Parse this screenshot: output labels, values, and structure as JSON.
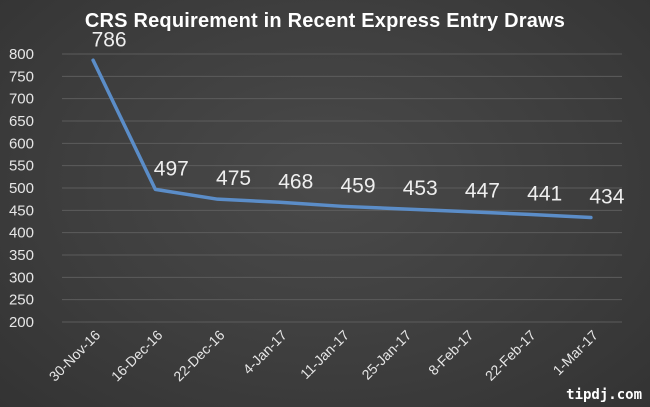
{
  "chart_data": {
    "type": "line",
    "title": "CRS Requirement in Recent Express Entry Draws",
    "xlabel": "",
    "ylabel": "",
    "categories": [
      "30-Nov-16",
      "16-Dec-16",
      "22-Dec-16",
      "4-Jan-17",
      "11-Jan-17",
      "25-Jan-17",
      "8-Feb-17",
      "22-Feb-17",
      "1-Mar-17"
    ],
    "series": [
      {
        "values": [
          786,
          497,
          475,
          468,
          459,
          453,
          447,
          441,
          434
        ]
      }
    ],
    "ylim": [
      200,
      800
    ],
    "yticks": [
      200,
      250,
      300,
      350,
      400,
      450,
      500,
      550,
      600,
      650,
      700,
      750,
      800
    ],
    "grid": true,
    "data_labels": true,
    "line_color": "#5b8dc8"
  },
  "watermark": "tipdj.com"
}
